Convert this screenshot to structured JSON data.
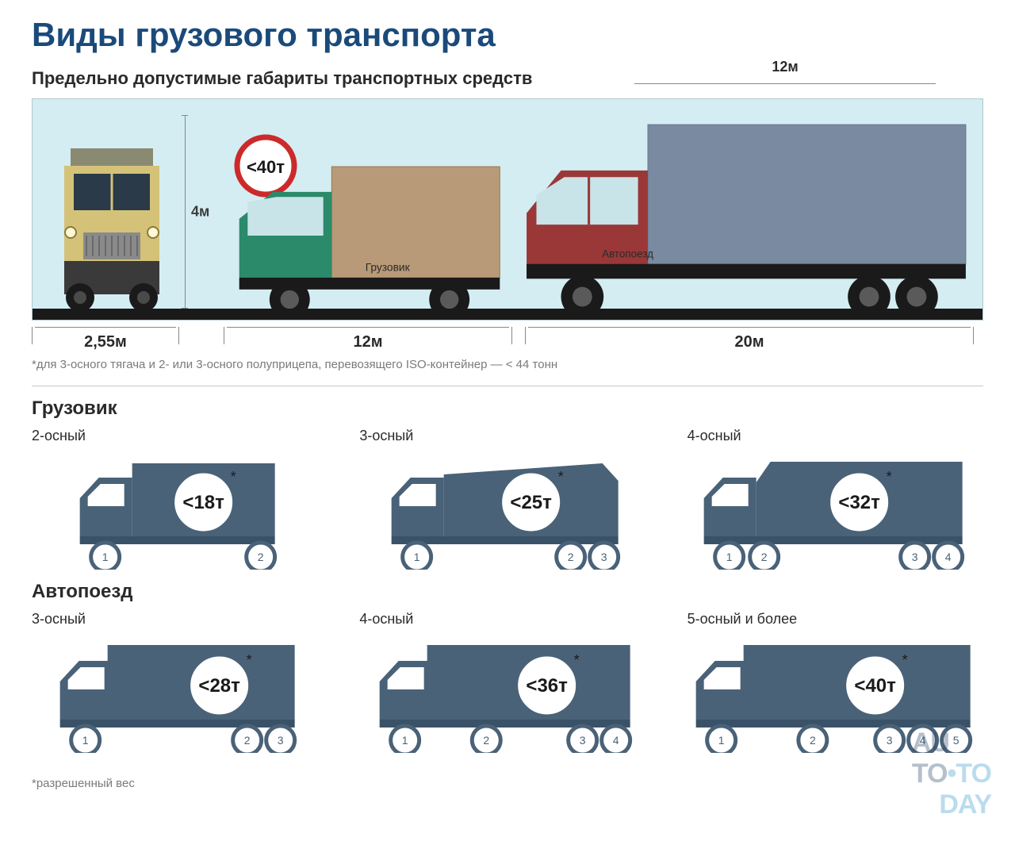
{
  "title": "Виды грузового транспорта",
  "subtitle": "Предельно допустимые габариты транспортных средств",
  "diagram": {
    "background": "#d4edf2",
    "ground_color": "#1a1a1a",
    "height_label": "4м",
    "weight_sign": "<40т",
    "truck_front": {
      "width_label": "2,55м",
      "colors": {
        "cab": "#d4c278",
        "roof": "#8a8a72",
        "bumper": "#3a3a3a",
        "grille": "#a0a0a0",
        "wheel": "#1a1a1a"
      }
    },
    "truck_side": {
      "label": "Грузовик",
      "length_label": "12м",
      "colors": {
        "cab": "#2a8a6a",
        "box": "#b89a78",
        "chassis": "#1a1a1a",
        "wheel": "#1a1a1a",
        "window": "#c8e4e8"
      }
    },
    "semi": {
      "label": "Автопоезд",
      "length_label": "20м",
      "trailer_length_label": "12м",
      "colors": {
        "cab": "#9a3838",
        "trailer": "#7a8aa0",
        "chassis": "#1a1a1a",
        "wheel": "#1a1a1a",
        "window": "#c8e4e8"
      }
    }
  },
  "footnote1": "*для 3-осного тягача и 2- или 3-осного полуприцепа, перевозящего ISO-контейнер — < 44 тонн",
  "footnote2": "*разрешенный вес",
  "sections": [
    {
      "heading": "Грузовик",
      "items": [
        {
          "axle_label": "2-осный",
          "weight": "<18т",
          "wheels": [
            1,
            2
          ],
          "type": "box"
        },
        {
          "axle_label": "3-осный",
          "weight": "<25т",
          "wheels": [
            1,
            2,
            3
          ],
          "type": "garbage"
        },
        {
          "axle_label": "4-осный",
          "weight": "<32т",
          "wheels": [
            1,
            2,
            3,
            4
          ],
          "type": "dump"
        }
      ]
    },
    {
      "heading": "Автопоезд",
      "items": [
        {
          "axle_label": "3-осный",
          "weight": "<28т",
          "wheels": [
            1,
            2,
            3
          ],
          "type": "semi"
        },
        {
          "axle_label": "4-осный",
          "weight": "<36т",
          "wheels": [
            1,
            2,
            3,
            4
          ],
          "type": "semi"
        },
        {
          "axle_label": "5-осный и более",
          "weight": "<40т",
          "wheels": [
            1,
            2,
            3,
            4,
            5
          ],
          "type": "semi"
        }
      ]
    }
  ],
  "palette": {
    "silhouette": "#4a6278",
    "silhouette_dark": "#3a5268",
    "circle_bg": "#ffffff",
    "circle_stroke": "#4a6278",
    "wheel_num_stroke": "#4a6278",
    "text_dark": "#2a2a2a",
    "divider": "#c8c8c8"
  },
  "watermark": {
    "part1": "AU",
    "part2": "TO",
    "dot": "•",
    "part3": "TO",
    "part4": "DAY"
  }
}
